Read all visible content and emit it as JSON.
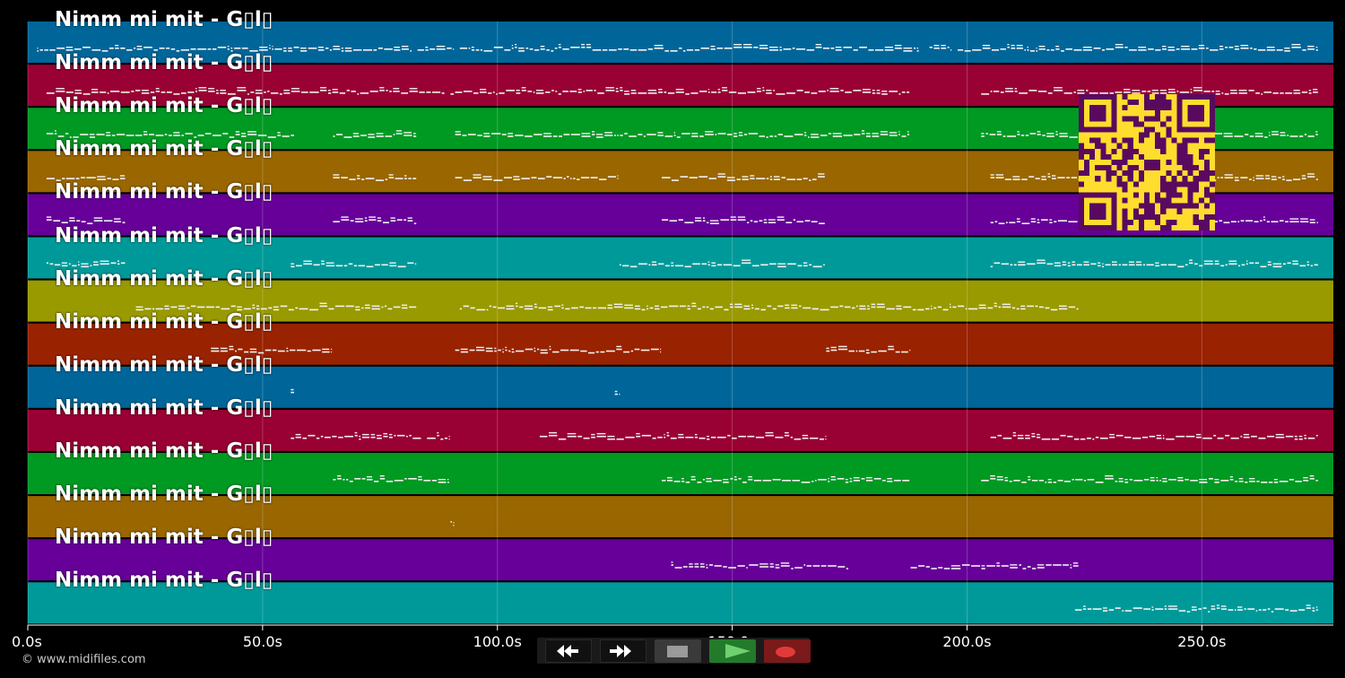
{
  "track_title": "Nimm mi mit - G▯l▯",
  "credit": "© www.midifiles.com",
  "time_axis": {
    "min_seconds": 0,
    "max_seconds": 278,
    "ticks": [
      {
        "value": 0,
        "label": "0.0s"
      },
      {
        "value": 50,
        "label": "50.0s"
      },
      {
        "value": 100,
        "label": "100.0s"
      },
      {
        "value": 150,
        "label": "150.0s"
      },
      {
        "value": 200,
        "label": "200.0s"
      },
      {
        "value": 250,
        "label": "250.0s"
      }
    ]
  },
  "tracks": [
    {
      "color": "#006699",
      "segments": [
        [
          2,
          82
        ],
        [
          83,
          91
        ],
        [
          92,
          190
        ],
        [
          192,
          197
        ],
        [
          198,
          275
        ]
      ]
    },
    {
      "color": "#990033",
      "segments": [
        [
          4,
          65
        ],
        [
          65,
          89
        ],
        [
          90,
          188
        ],
        [
          203,
          275
        ]
      ]
    },
    {
      "color": "#009922",
      "segments": [
        [
          4,
          57
        ],
        [
          65,
          83
        ],
        [
          91,
          127
        ],
        [
          127,
          188
        ],
        [
          203,
          275
        ]
      ]
    },
    {
      "color": "#996600",
      "segments": [
        [
          4,
          21
        ],
        [
          65,
          83
        ],
        [
          91,
          126
        ],
        [
          135,
          170
        ],
        [
          205,
          275
        ]
      ]
    },
    {
      "color": "#660099",
      "segments": [
        [
          4,
          21
        ],
        [
          65,
          83
        ],
        [
          135,
          170
        ],
        [
          205,
          275
        ]
      ]
    },
    {
      "color": "#009999",
      "segments": [
        [
          4,
          21
        ],
        [
          56,
          83
        ],
        [
          126,
          170
        ],
        [
          205,
          275
        ]
      ]
    },
    {
      "color": "#999900",
      "segments": [
        [
          23,
          83
        ],
        [
          92,
          224
        ]
      ]
    },
    {
      "color": "#992200",
      "segments": [
        [
          39,
          65
        ],
        [
          91,
          135
        ],
        [
          170,
          188
        ]
      ]
    },
    {
      "color": "#006699",
      "segments": [
        [
          56,
          57
        ],
        [
          125,
          126
        ]
      ]
    },
    {
      "color": "#990033",
      "segments": [
        [
          56,
          84
        ],
        [
          85,
          90
        ],
        [
          109,
          170
        ],
        [
          205,
          275
        ]
      ]
    },
    {
      "color": "#009922",
      "segments": [
        [
          65,
          90
        ],
        [
          135,
          188
        ],
        [
          203,
          275
        ]
      ]
    },
    {
      "color": "#996600",
      "segments": [
        [
          90,
          91
        ]
      ]
    },
    {
      "color": "#660099",
      "segments": [
        [
          137,
          175
        ],
        [
          188,
          224
        ]
      ]
    },
    {
      "color": "#009999",
      "segments": [
        [
          223,
          275
        ]
      ]
    }
  ],
  "transport": {
    "rewind": "rewind-icon",
    "fast_forward": "fast-forward-icon",
    "stop": "stop-icon",
    "play": "play-icon",
    "record": "record-icon"
  },
  "colors": {
    "background": "#000000",
    "qr_fg": "#5a0a5e",
    "qr_bg": "#ffdd2e",
    "play_bg": "#237a2a",
    "record_bg": "#7a1a1a"
  }
}
